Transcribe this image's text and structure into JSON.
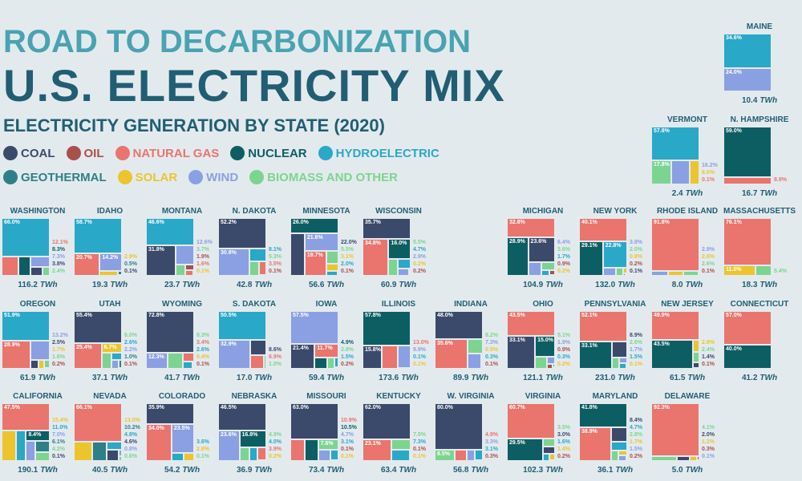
{
  "header": {
    "kicker": "ROAD TO DECARBONIZATION",
    "title": "U.S. ELECTRICITY MIX",
    "subtitle": "ELECTRICITY GENERATION BY STATE (2020)"
  },
  "colors": {
    "coal": "#3b4a6b",
    "oil": "#a9504a",
    "gas": "#e9756e",
    "nuclear": "#0d5e63",
    "hydro": "#2aa8c7",
    "geo": "#2f7f88",
    "solar": "#ecc52e",
    "wind": "#8aa0e2",
    "bio": "#7dd490"
  },
  "legend": {
    "row1": [
      {
        "key": "coal",
        "label": "COAL"
      },
      {
        "key": "oil",
        "label": "OIL"
      },
      {
        "key": "gas",
        "label": "NATURAL GAS"
      },
      {
        "key": "nuclear",
        "label": "NUCLEAR"
      },
      {
        "key": "hydro",
        "label": "HYDROELECTRIC"
      }
    ],
    "row2": [
      {
        "key": "geo",
        "label": "GEOTHERMAL"
      },
      {
        "key": "solar",
        "label": "SOLAR"
      },
      {
        "key": "wind",
        "label": "WIND"
      },
      {
        "key": "bio",
        "label": "BIOMASS AND OTHER"
      }
    ]
  },
  "unit": "TWh",
  "chart_data": {
    "type": "treemap",
    "title": "Electricity generation by state (2020)",
    "value_unit": "% share of generation",
    "states": [
      {
        "name": "WASHINGTON",
        "total": "116.2",
        "grid": [
          0,
          0
        ],
        "mix": [
          [
            "hydro",
            66.0
          ],
          [
            "gas",
            12.1
          ],
          [
            "nuclear",
            8.3
          ],
          [
            "wind",
            7.3
          ],
          [
            "coal",
            3.8
          ],
          [
            "bio",
            2.4
          ]
        ]
      },
      {
        "name": "IDAHO",
        "total": "19.3",
        "grid": [
          1,
          0
        ],
        "mix": [
          [
            "hydro",
            58.7
          ],
          [
            "gas",
            20.7
          ],
          [
            "wind",
            14.2
          ],
          [
            "solar",
            2.9
          ],
          [
            "geo",
            0.5
          ],
          [
            "coal",
            0.1
          ]
        ]
      },
      {
        "name": "MONTANA",
        "total": "23.7",
        "grid": [
          2,
          0
        ],
        "mix": [
          [
            "hydro",
            46.6
          ],
          [
            "coal",
            31.8
          ],
          [
            "wind",
            12.6
          ],
          [
            "bio",
            3.7
          ],
          [
            "oil",
            1.9
          ],
          [
            "gas",
            1.6
          ],
          [
            "solar",
            0.1
          ]
        ]
      },
      {
        "name": "N. DAKOTA",
        "total": "42.8",
        "grid": [
          3,
          0
        ],
        "mix": [
          [
            "coal",
            52.2
          ],
          [
            "wind",
            30.8
          ],
          [
            "hydro",
            8.1
          ],
          [
            "bio",
            5.3
          ],
          [
            "gas",
            3.5
          ],
          [
            "oil",
            0.1
          ]
        ]
      },
      {
        "name": "MINNESOTA",
        "total": "56.6",
        "grid": [
          4,
          0
        ],
        "mix": [
          [
            "nuclear",
            26.0
          ],
          [
            "coal",
            22.0
          ],
          [
            "wind",
            21.6
          ],
          [
            "gas",
            19.7
          ],
          [
            "bio",
            5.5
          ],
          [
            "solar",
            3.1
          ],
          [
            "hydro",
            2.0
          ],
          [
            "oil",
            0.1
          ]
        ]
      },
      {
        "name": "WISCONSIN",
        "total": "60.9",
        "grid": [
          5,
          0
        ],
        "mix": [
          [
            "coal",
            35.7
          ],
          [
            "gas",
            34.8
          ],
          [
            "nuclear",
            16.0
          ],
          [
            "bio",
            5.5
          ],
          [
            "hydro",
            4.7
          ],
          [
            "wind",
            2.9
          ],
          [
            "solar",
            0.2
          ],
          [
            "oil",
            0.2
          ]
        ]
      },
      {
        "name": "MICHIGAN",
        "total": "104.9",
        "grid": [
          7,
          0
        ],
        "mix": [
          [
            "gas",
            32.8
          ],
          [
            "nuclear",
            28.9
          ],
          [
            "coal",
            23.6
          ],
          [
            "wind",
            6.4
          ],
          [
            "bio",
            3.6
          ],
          [
            "hydro",
            1.7
          ],
          [
            "oil",
            0.9
          ],
          [
            "solar",
            0.2
          ]
        ]
      },
      {
        "name": "NEW YORK",
        "total": "132.0",
        "grid": [
          8,
          0
        ],
        "mix": [
          [
            "gas",
            40.1
          ],
          [
            "nuclear",
            29.1
          ],
          [
            "hydro",
            22.8
          ],
          [
            "wind",
            3.8
          ],
          [
            "bio",
            2.0
          ],
          [
            "solar",
            0.8
          ],
          [
            "oil",
            0.2
          ],
          [
            "coal",
            0.1
          ]
        ]
      },
      {
        "name": "RHODE ISLAND",
        "total": "8.0",
        "grid": [
          9,
          0
        ],
        "mix": [
          [
            "gas",
            91.8
          ],
          [
            "wind",
            2.9
          ],
          [
            "solar",
            2.6
          ],
          [
            "bio",
            2.6
          ],
          [
            "oil",
            0.1
          ]
        ]
      },
      {
        "name": "MASSACHUSETTS",
        "total": "18.3",
        "grid": [
          10,
          0
        ],
        "mix": [
          [
            "gas",
            76.1
          ],
          [
            "solar",
            11.0
          ],
          [
            "bio",
            5.4
          ]
        ]
      },
      {
        "name": "OREGON",
        "total": "61.9",
        "grid": [
          0,
          1
        ],
        "mix": [
          [
            "hydro",
            51.9
          ],
          [
            "gas",
            28.9
          ],
          [
            "wind",
            13.2
          ],
          [
            "coal",
            2.5
          ],
          [
            "solar",
            1.7
          ],
          [
            "bio",
            1.6
          ],
          [
            "oil",
            0.2
          ]
        ]
      },
      {
        "name": "UTAH",
        "total": "37.1",
        "grid": [
          1,
          1
        ],
        "mix": [
          [
            "coal",
            55.4
          ],
          [
            "gas",
            25.4
          ],
          [
            "solar",
            6.7
          ],
          [
            "bio",
            6.0
          ],
          [
            "hydro",
            2.6
          ],
          [
            "wind",
            2.2
          ],
          [
            "geo",
            1.0
          ],
          [
            "oil",
            0.1
          ]
        ]
      },
      {
        "name": "WYOMING",
        "total": "41.7",
        "grid": [
          2,
          1
        ],
        "mix": [
          [
            "coal",
            72.8
          ],
          [
            "wind",
            12.3
          ],
          [
            "bio",
            8.3
          ],
          [
            "gas",
            3.4
          ],
          [
            "hydro",
            2.6
          ],
          [
            "solar",
            0.4
          ],
          [
            "oil",
            0.1
          ]
        ]
      },
      {
        "name": "S. DAKOTA",
        "total": "17.0",
        "grid": [
          3,
          1
        ],
        "mix": [
          [
            "hydro",
            50.5
          ],
          [
            "wind",
            32.9
          ],
          [
            "coal",
            8.6
          ],
          [
            "gas",
            6.9
          ],
          [
            "bio",
            1.0
          ]
        ]
      },
      {
        "name": "IOWA",
        "total": "59.4",
        "grid": [
          4,
          1
        ],
        "mix": [
          [
            "wind",
            57.5
          ],
          [
            "coal",
            21.4
          ],
          [
            "gas",
            11.7
          ],
          [
            "nuclear",
            4.9
          ],
          [
            "bio",
            2.8
          ],
          [
            "hydro",
            1.5
          ],
          [
            "oil",
            0.2
          ]
        ]
      },
      {
        "name": "ILLINOIS",
        "total": "173.6",
        "grid": [
          5,
          1
        ],
        "mix": [
          [
            "nuclear",
            57.8
          ],
          [
            "coal",
            15.8
          ],
          [
            "gas",
            13.0
          ],
          [
            "wind",
            9.9
          ],
          [
            "hydro",
            0.1
          ],
          [
            "solar",
            0.1
          ]
        ]
      },
      {
        "name": "INDIANA",
        "total": "89.9",
        "grid": [
          6,
          1
        ],
        "mix": [
          [
            "coal",
            48.0
          ],
          [
            "gas",
            35.6
          ],
          [
            "bio",
            8.2
          ],
          [
            "wind",
            7.3
          ],
          [
            "solar",
            0.5
          ],
          [
            "hydro",
            0.3
          ],
          [
            "oil",
            0.1
          ]
        ]
      },
      {
        "name": "OHIO",
        "total": "121.1",
        "grid": [
          7,
          1
        ],
        "mix": [
          [
            "gas",
            43.5
          ],
          [
            "coal",
            33.1
          ],
          [
            "nuclear",
            15.0
          ],
          [
            "bio",
            5.1
          ],
          [
            "wind",
            1.9
          ],
          [
            "oil",
            0.9
          ],
          [
            "hydro",
            0.3
          ],
          [
            "solar",
            0.2
          ]
        ]
      },
      {
        "name": "PENNSYLVANIA",
        "total": "231.0",
        "grid": [
          8,
          1
        ],
        "mix": [
          [
            "gas",
            52.1
          ],
          [
            "nuclear",
            33.1
          ],
          [
            "coal",
            8.9
          ],
          [
            "bio",
            2.6
          ],
          [
            "wind",
            1.7
          ],
          [
            "hydro",
            1.5
          ],
          [
            "solar",
            0.1
          ]
        ]
      },
      {
        "name": "NEW JERSEY",
        "total": "61.5",
        "grid": [
          9,
          1
        ],
        "mix": [
          [
            "gas",
            49.9
          ],
          [
            "nuclear",
            43.5
          ],
          [
            "solar",
            2.8
          ],
          [
            "bio",
            2.4
          ],
          [
            "coal",
            1.4
          ],
          [
            "oil",
            0.1
          ]
        ]
      },
      {
        "name": "CONNECTICUT",
        "total": "41.2",
        "grid": [
          10,
          1
        ],
        "mix": [
          [
            "gas",
            57.0
          ],
          [
            "nuclear",
            40.0
          ]
        ]
      },
      {
        "name": "CALIFORNIA",
        "total": "190.1",
        "grid": [
          0,
          2
        ],
        "mix": [
          [
            "gas",
            47.5
          ],
          [
            "solar",
            15.4
          ],
          [
            "hydro",
            11.0
          ],
          [
            "nuclear",
            8.4
          ],
          [
            "wind",
            7.0
          ],
          [
            "geo",
            6.1
          ],
          [
            "bio",
            4.2
          ],
          [
            "coal",
            0.1
          ]
        ]
      },
      {
        "name": "NEVADA",
        "total": "40.5",
        "grid": [
          1,
          2
        ],
        "mix": [
          [
            "gas",
            66.1
          ],
          [
            "solar",
            13.0
          ],
          [
            "geo",
            10.2
          ],
          [
            "hydro",
            4.8
          ],
          [
            "coal",
            4.6
          ],
          [
            "wind",
            0.8
          ],
          [
            "bio",
            0.6
          ]
        ]
      },
      {
        "name": "COLORADO",
        "total": "54.2",
        "grid": [
          2,
          2
        ],
        "mix": [
          [
            "coal",
            35.9
          ],
          [
            "gas",
            34.0
          ],
          [
            "wind",
            23.5
          ],
          [
            "hydro",
            3.6
          ],
          [
            "solar",
            2.8
          ],
          [
            "bio",
            0.1
          ]
        ]
      },
      {
        "name": "NEBRASKA",
        "total": "36.9",
        "grid": [
          3,
          2
        ],
        "mix": [
          [
            "coal",
            46.5
          ],
          [
            "wind",
            23.6
          ],
          [
            "nuclear",
            16.8
          ],
          [
            "bio",
            4.9
          ],
          [
            "hydro",
            4.0
          ],
          [
            "gas",
            3.9
          ],
          [
            "solar",
            0.2
          ]
        ]
      },
      {
        "name": "MISSOURI",
        "total": "73.4",
        "grid": [
          4,
          2
        ],
        "mix": [
          [
            "coal",
            63.0
          ],
          [
            "gas",
            10.9
          ],
          [
            "nuclear",
            10.5
          ],
          [
            "bio",
            7.6
          ],
          [
            "wind",
            4.7
          ],
          [
            "hydro",
            3.1
          ],
          [
            "oil",
            0.1
          ],
          [
            "solar",
            0.1
          ]
        ]
      },
      {
        "name": "KENTUCKY",
        "total": "63.4",
        "grid": [
          5,
          2
        ],
        "mix": [
          [
            "coal",
            62.0
          ],
          [
            "gas",
            23.1
          ],
          [
            "bio",
            7.5
          ],
          [
            "hydro",
            7.3
          ],
          [
            "oil",
            0.1
          ],
          [
            "solar",
            0.1
          ]
        ]
      },
      {
        "name": "W. VIRGINIA",
        "total": "56.8",
        "grid": [
          6,
          2
        ],
        "mix": [
          [
            "coal",
            80.0
          ],
          [
            "bio",
            8.5
          ],
          [
            "gas",
            4.9
          ],
          [
            "wind",
            3.3
          ],
          [
            "hydro",
            3.1
          ],
          [
            "oil",
            0.3
          ]
        ]
      },
      {
        "name": "VIRGINIA",
        "total": "102.3",
        "grid": [
          7,
          2
        ],
        "mix": [
          [
            "gas",
            60.7
          ],
          [
            "nuclear",
            29.5
          ],
          [
            "bio",
            3.5
          ],
          [
            "coal",
            3.0
          ],
          [
            "hydro",
            1.6
          ],
          [
            "solar",
            1.4
          ],
          [
            "oil",
            0.2
          ]
        ]
      },
      {
        "name": "MARYLAND",
        "total": "36.1",
        "grid": [
          8,
          2
        ],
        "mix": [
          [
            "nuclear",
            41.8
          ],
          [
            "gas",
            38.9
          ],
          [
            "coal",
            8.4
          ],
          [
            "hydro",
            4.7
          ],
          [
            "bio",
            2.8
          ],
          [
            "solar",
            1.7
          ],
          [
            "wind",
            1.5
          ],
          [
            "oil",
            0.2
          ]
        ]
      },
      {
        "name": "DELAWARE",
        "total": "5.0",
        "grid": [
          9,
          2
        ],
        "mix": [
          [
            "gas",
            92.3
          ],
          [
            "bio",
            4.1
          ],
          [
            "coal",
            2.0
          ],
          [
            "solar",
            1.2
          ],
          [
            "oil",
            0.3
          ],
          [
            "wind",
            0.1
          ]
        ]
      },
      {
        "name": "VERMONT",
        "total": "2.4",
        "grid": [
          9,
          -1
        ],
        "mix": [
          [
            "hydro",
            57.8
          ],
          [
            "bio",
            17.8
          ],
          [
            "wind",
            16.2
          ],
          [
            "solar",
            8.0
          ],
          [
            "gas",
            0.1
          ]
        ]
      },
      {
        "name": "N. HAMPSHIRE",
        "total": "16.7",
        "grid": [
          10,
          -1
        ],
        "mix": [
          [
            "nuclear",
            59.0
          ],
          [
            "gas",
            8.9
          ]
        ]
      },
      {
        "name": "MAINE",
        "total": "10.4",
        "grid": [
          10,
          -2
        ],
        "mix": [
          [
            "hydro",
            34.6
          ],
          [
            "wind",
            24.0
          ]
        ]
      }
    ]
  }
}
